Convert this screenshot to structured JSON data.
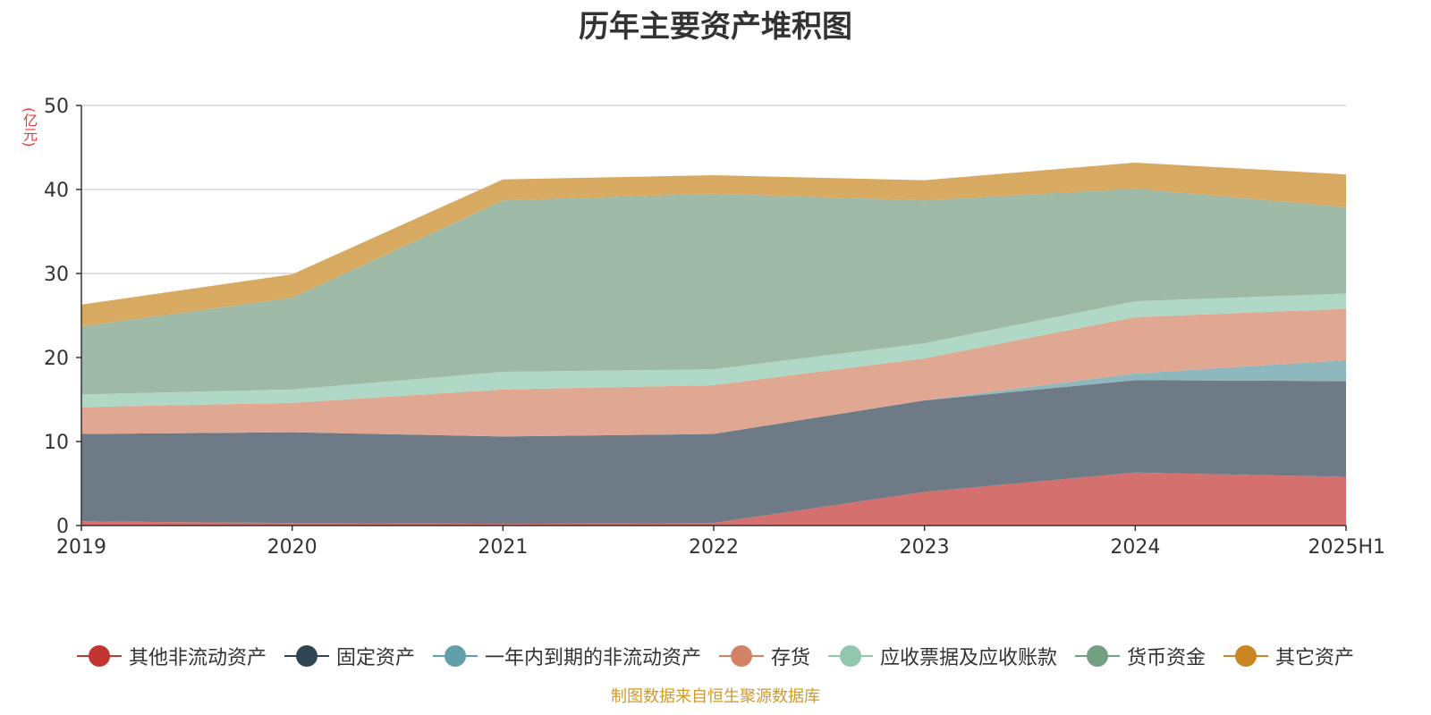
{
  "chart_data": {
    "type": "area",
    "stacked": true,
    "title": "历年主要资产堆积图",
    "ylabel": "(亿元)",
    "xlabel": "",
    "categories": [
      "2019",
      "2020",
      "2021",
      "2022",
      "2023",
      "2024",
      "2025H1"
    ],
    "ylim": [
      0,
      50
    ],
    "yticks": [
      0,
      10,
      20,
      30,
      40,
      50
    ],
    "grid": true,
    "legend_position": "bottom",
    "series": [
      {
        "name": "其他非流动资产",
        "values": [
          0.5,
          0.3,
          0.2,
          0.3,
          4.0,
          6.3,
          5.8
        ],
        "color": "#c23531",
        "fill": "#d4716e"
      },
      {
        "name": "固定资产",
        "values": [
          10.4,
          10.8,
          10.4,
          10.6,
          10.9,
          11.0,
          11.4
        ],
        "color": "#2f4554",
        "fill": "#6e7b87"
      },
      {
        "name": "一年内到期的非流动资产",
        "values": [
          0.0,
          0.0,
          0.0,
          0.0,
          0.0,
          0.8,
          2.5
        ],
        "color": "#61a0a8",
        "fill": "#8fb8be"
      },
      {
        "name": "存货",
        "values": [
          3.2,
          3.5,
          5.6,
          5.8,
          5.0,
          6.7,
          6.1
        ],
        "color": "#d48265",
        "fill": "#e0a792"
      },
      {
        "name": "应收票据及应收账款",
        "values": [
          1.5,
          1.6,
          2.1,
          1.9,
          1.8,
          1.9,
          1.8
        ],
        "color": "#91c7ae",
        "fill": "#b0d8c6"
      },
      {
        "name": "货币资金",
        "values": [
          8.1,
          10.9,
          20.4,
          20.9,
          17.0,
          13.4,
          10.3
        ],
        "color": "#749f83",
        "fill": "#9eb9a5"
      },
      {
        "name": "其它资产",
        "values": [
          2.6,
          2.8,
          2.5,
          2.2,
          2.4,
          3.1,
          3.9
        ],
        "color": "#ca8622",
        "fill": "#d8a961"
      }
    ],
    "source_note": "制图数据来自恒生聚源数据库"
  }
}
